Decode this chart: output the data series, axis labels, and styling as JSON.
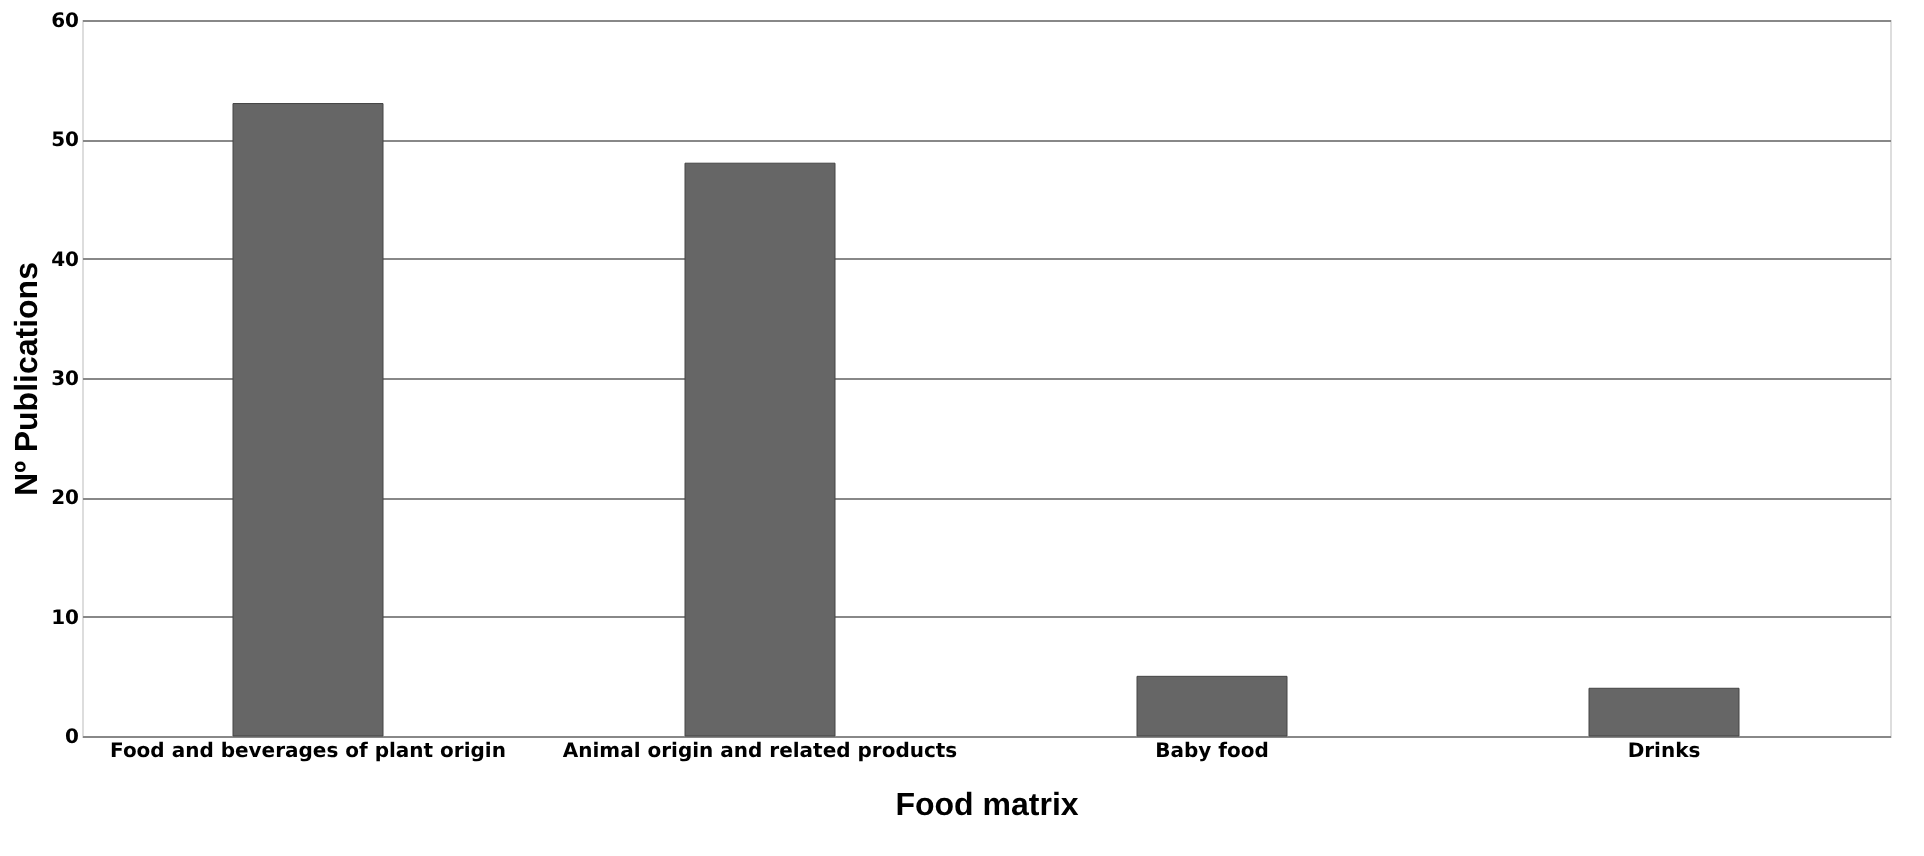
{
  "chart_data": {
    "type": "bar",
    "categories": [
      "Food and beverages of plant origin",
      "Animal origin and related products",
      "Baby food",
      "Drinks"
    ],
    "values": [
      53,
      48,
      5,
      4
    ],
    "color": "#666666",
    "xlabel": "Food matrix",
    "ylabel": "Nº Publications",
    "ylim": [
      0,
      60
    ],
    "yticks": [
      0,
      10,
      20,
      30,
      40,
      50,
      60
    ],
    "grid": "y"
  }
}
